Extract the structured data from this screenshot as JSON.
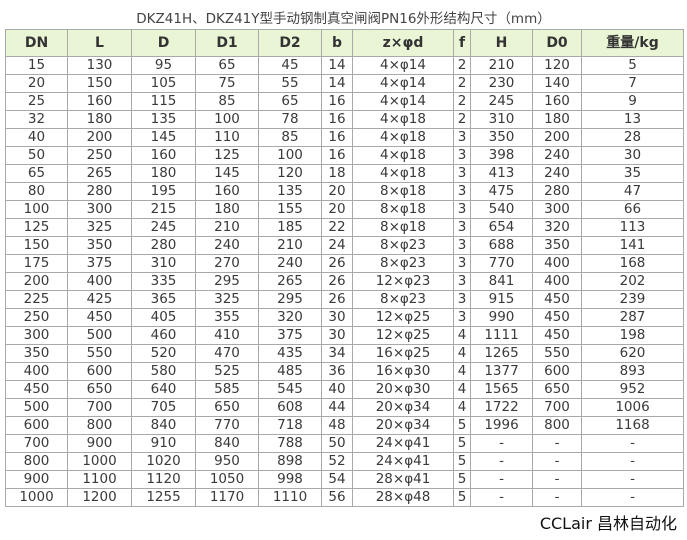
{
  "title": "DKZ41H、DKZ41Y型手动钢制真空闸阀PN16外形结构尺寸（mm）",
  "header_bg": "#eaf5d6",
  "columns": [
    "DN",
    "L",
    "D",
    "D1",
    "D2",
    "b",
    "z×φd",
    "f",
    "H",
    "D0",
    "重量/kg"
  ],
  "rows": [
    [
      "15",
      "130",
      "95",
      "65",
      "45",
      "14",
      "4×φ14",
      "2",
      "210",
      "120",
      "5"
    ],
    [
      "20",
      "150",
      "105",
      "75",
      "55",
      "14",
      "4×φ14",
      "2",
      "230",
      "140",
      "7"
    ],
    [
      "25",
      "160",
      "115",
      "85",
      "65",
      "16",
      "4×φ14",
      "2",
      "245",
      "160",
      "9"
    ],
    [
      "32",
      "180",
      "135",
      "100",
      "78",
      "16",
      "4×φ18",
      "2",
      "310",
      "180",
      "13"
    ],
    [
      "40",
      "200",
      "145",
      "110",
      "85",
      "16",
      "4×φ18",
      "3",
      "350",
      "200",
      "28"
    ],
    [
      "50",
      "250",
      "160",
      "125",
      "100",
      "16",
      "4×φ18",
      "3",
      "398",
      "240",
      "30"
    ],
    [
      "65",
      "265",
      "180",
      "145",
      "120",
      "18",
      "4×φ18",
      "3",
      "413",
      "240",
      "35"
    ],
    [
      "80",
      "280",
      "195",
      "160",
      "135",
      "20",
      "8×φ18",
      "3",
      "475",
      "280",
      "47"
    ],
    [
      "100",
      "300",
      "215",
      "180",
      "155",
      "20",
      "8×φ18",
      "3",
      "540",
      "300",
      "66"
    ],
    [
      "125",
      "325",
      "245",
      "210",
      "185",
      "22",
      "8×φ18",
      "3",
      "654",
      "320",
      "113"
    ],
    [
      "150",
      "350",
      "280",
      "240",
      "210",
      "24",
      "8×φ23",
      "3",
      "688",
      "350",
      "141"
    ],
    [
      "175",
      "375",
      "310",
      "270",
      "240",
      "26",
      "8×φ23",
      "3",
      "770",
      "400",
      "168"
    ],
    [
      "200",
      "400",
      "335",
      "295",
      "265",
      "26",
      "12×φ23",
      "3",
      "841",
      "400",
      "202"
    ],
    [
      "225",
      "425",
      "365",
      "325",
      "295",
      "26",
      "8×φ23",
      "3",
      "915",
      "450",
      "239"
    ],
    [
      "250",
      "450",
      "405",
      "355",
      "320",
      "30",
      "12×φ25",
      "3",
      "990",
      "450",
      "287"
    ],
    [
      "300",
      "500",
      "460",
      "410",
      "375",
      "30",
      "12×φ25",
      "4",
      "1111",
      "450",
      "198"
    ],
    [
      "350",
      "550",
      "520",
      "470",
      "435",
      "34",
      "16×φ25",
      "4",
      "1265",
      "550",
      "620"
    ],
    [
      "400",
      "600",
      "580",
      "525",
      "485",
      "36",
      "16×φ30",
      "4",
      "1377",
      "600",
      "893"
    ],
    [
      "450",
      "650",
      "640",
      "585",
      "545",
      "40",
      "20×φ30",
      "4",
      "1565",
      "650",
      "952"
    ],
    [
      "500",
      "700",
      "705",
      "650",
      "608",
      "44",
      "20×φ34",
      "4",
      "1722",
      "700",
      "1006"
    ],
    [
      "600",
      "800",
      "840",
      "770",
      "718",
      "48",
      "20×φ34",
      "5",
      "1996",
      "800",
      "1168"
    ],
    [
      "700",
      "900",
      "910",
      "840",
      "788",
      "50",
      "24×φ41",
      "5",
      "-",
      "-",
      "-"
    ],
    [
      "800",
      "1000",
      "1020",
      "950",
      "898",
      "52",
      "24×φ41",
      "5",
      "-",
      "-",
      "-"
    ],
    [
      "900",
      "1100",
      "1120",
      "1050",
      "998",
      "54",
      "28×φ41",
      "5",
      "-",
      "-",
      "-"
    ],
    [
      "1000",
      "1200",
      "1255",
      "1170",
      "1110",
      "56",
      "28×φ48",
      "5",
      "-",
      "-",
      "-"
    ]
  ],
  "watermark": "CCLair 昌林自动化"
}
